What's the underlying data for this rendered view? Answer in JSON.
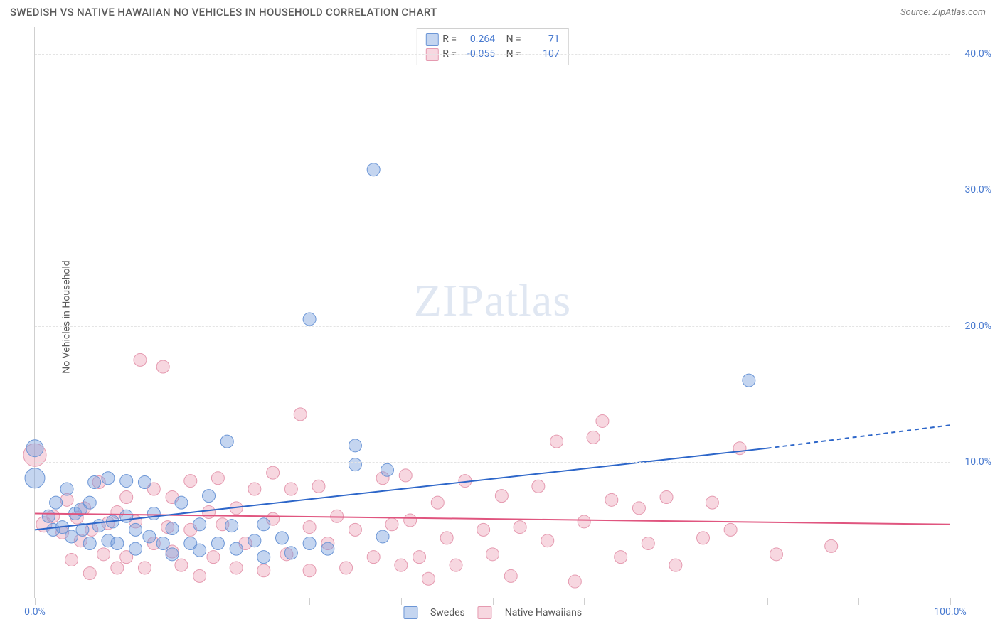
{
  "title": "SWEDISH VS NATIVE HAWAIIAN NO VEHICLES IN HOUSEHOLD CORRELATION CHART",
  "source_label": "Source: ZipAtlas.com",
  "y_axis_title": "No Vehicles in Household",
  "watermark": {
    "prefix": "ZIP",
    "suffix": "atlas"
  },
  "chart": {
    "type": "scatter",
    "xlim": [
      0,
      100
    ],
    "ylim": [
      0,
      42
    ],
    "x_ticks": [
      0,
      10,
      20,
      30,
      40,
      50,
      60,
      70,
      80,
      90,
      100
    ],
    "x_tick_labels_shown": [
      {
        "v": 0,
        "t": "0.0%"
      },
      {
        "v": 100,
        "t": "100.0%"
      }
    ],
    "y_ticks": [
      10,
      20,
      30,
      40
    ],
    "y_tick_labels": [
      "10.0%",
      "20.0%",
      "30.0%",
      "40.0%"
    ],
    "grid_color": "#e4e4e4",
    "axis_color": "#cfcfcf",
    "background": "#ffffff",
    "title_fontsize": 15,
    "label_fontsize": 14,
    "tick_color": "#4a7bd0"
  },
  "series": {
    "swedes": {
      "label": "Swedes",
      "color_fill": "rgba(124,162,222,0.45)",
      "color_stroke": "#6c96d6",
      "marker_radius": 9,
      "R": "0.264",
      "N": "71",
      "trend": {
        "x0": 0,
        "y0": 5.0,
        "x1": 80,
        "y1": 11.0,
        "color": "#2d66c9",
        "width": 2,
        "dash_extend_to": 100,
        "y_extend": 12.7
      },
      "points": [
        {
          "x": 0,
          "y": 11,
          "r": 12
        },
        {
          "x": 0,
          "y": 8.8,
          "r": 14
        },
        {
          "x": 1.5,
          "y": 6,
          "r": 9
        },
        {
          "x": 2,
          "y": 5,
          "r": 9
        },
        {
          "x": 2.3,
          "y": 7,
          "r": 9
        },
        {
          "x": 3,
          "y": 5.2,
          "r": 9
        },
        {
          "x": 3.5,
          "y": 8,
          "r": 9
        },
        {
          "x": 4,
          "y": 4.5,
          "r": 9
        },
        {
          "x": 4.4,
          "y": 6.2,
          "r": 9
        },
        {
          "x": 5,
          "y": 6.5,
          "r": 9
        },
        {
          "x": 5.2,
          "y": 5,
          "r": 9
        },
        {
          "x": 6,
          "y": 4,
          "r": 9
        },
        {
          "x": 6,
          "y": 7,
          "r": 9
        },
        {
          "x": 6.5,
          "y": 8.5,
          "r": 9
        },
        {
          "x": 7,
          "y": 5.3,
          "r": 9
        },
        {
          "x": 8,
          "y": 8.8,
          "r": 9
        },
        {
          "x": 8,
          "y": 4.2,
          "r": 9
        },
        {
          "x": 8.5,
          "y": 5.6,
          "r": 9
        },
        {
          "x": 9,
          "y": 4,
          "r": 9
        },
        {
          "x": 10,
          "y": 6,
          "r": 9
        },
        {
          "x": 10,
          "y": 8.6,
          "r": 9
        },
        {
          "x": 11,
          "y": 5,
          "r": 9
        },
        {
          "x": 11,
          "y": 3.6,
          "r": 9
        },
        {
          "x": 12,
          "y": 8.5,
          "r": 9
        },
        {
          "x": 12.5,
          "y": 4.5,
          "r": 9
        },
        {
          "x": 13,
          "y": 6.2,
          "r": 9
        },
        {
          "x": 14,
          "y": 4,
          "r": 9
        },
        {
          "x": 15,
          "y": 5.1,
          "r": 9
        },
        {
          "x": 15,
          "y": 3.2,
          "r": 9
        },
        {
          "x": 16,
          "y": 7,
          "r": 9
        },
        {
          "x": 17,
          "y": 4,
          "r": 9
        },
        {
          "x": 18,
          "y": 3.5,
          "r": 9
        },
        {
          "x": 18,
          "y": 5.4,
          "r": 9
        },
        {
          "x": 19,
          "y": 7.5,
          "r": 9
        },
        {
          "x": 20,
          "y": 4,
          "r": 9
        },
        {
          "x": 21,
          "y": 11.5,
          "r": 9
        },
        {
          "x": 21.5,
          "y": 5.3,
          "r": 9
        },
        {
          "x": 22,
          "y": 3.6,
          "r": 9
        },
        {
          "x": 24,
          "y": 4.2,
          "r": 9
        },
        {
          "x": 25,
          "y": 3,
          "r": 9
        },
        {
          "x": 25,
          "y": 5.4,
          "r": 9
        },
        {
          "x": 27,
          "y": 4.4,
          "r": 9
        },
        {
          "x": 28,
          "y": 3.3,
          "r": 9
        },
        {
          "x": 30,
          "y": 20.5,
          "r": 9
        },
        {
          "x": 30,
          "y": 4,
          "r": 9
        },
        {
          "x": 32,
          "y": 3.6,
          "r": 9
        },
        {
          "x": 35,
          "y": 11.2,
          "r": 9
        },
        {
          "x": 35,
          "y": 9.8,
          "r": 9
        },
        {
          "x": 37,
          "y": 31.5,
          "r": 9
        },
        {
          "x": 38,
          "y": 4.5,
          "r": 9
        },
        {
          "x": 38.5,
          "y": 9.4,
          "r": 9
        },
        {
          "x": 78,
          "y": 16,
          "r": 9
        }
      ]
    },
    "hawaiians": {
      "label": "Native Hawaiians",
      "color_fill": "rgba(236,160,180,0.42)",
      "color_stroke": "#e59ab0",
      "marker_radius": 9,
      "R": "-0.055",
      "N": "107",
      "trend": {
        "x0": 0,
        "y0": 6.2,
        "x1": 100,
        "y1": 5.4,
        "color": "#e0557f",
        "width": 2
      },
      "points": [
        {
          "x": 0,
          "y": 10.5,
          "r": 16
        },
        {
          "x": 1,
          "y": 5.4,
          "r": 11
        },
        {
          "x": 2,
          "y": 6,
          "r": 9
        },
        {
          "x": 3,
          "y": 4.8,
          "r": 9
        },
        {
          "x": 3.5,
          "y": 7.2,
          "r": 9
        },
        {
          "x": 4,
          "y": 2.8,
          "r": 9
        },
        {
          "x": 4.6,
          "y": 5.9,
          "r": 9
        },
        {
          "x": 5,
          "y": 4.2,
          "r": 9
        },
        {
          "x": 5.4,
          "y": 6.6,
          "r": 9
        },
        {
          "x": 6,
          "y": 1.8,
          "r": 9
        },
        {
          "x": 6.2,
          "y": 5,
          "r": 9
        },
        {
          "x": 7,
          "y": 8.5,
          "r": 9
        },
        {
          "x": 7.5,
          "y": 3.2,
          "r": 9
        },
        {
          "x": 8,
          "y": 5.5,
          "r": 9
        },
        {
          "x": 9,
          "y": 2.2,
          "r": 9
        },
        {
          "x": 9,
          "y": 6.3,
          "r": 9
        },
        {
          "x": 10,
          "y": 7.4,
          "r": 9
        },
        {
          "x": 10,
          "y": 3,
          "r": 9
        },
        {
          "x": 11,
          "y": 5.6,
          "r": 9
        },
        {
          "x": 11.5,
          "y": 17.5,
          "r": 9
        },
        {
          "x": 12,
          "y": 2.2,
          "r": 9
        },
        {
          "x": 13,
          "y": 4,
          "r": 9
        },
        {
          "x": 13,
          "y": 8,
          "r": 9
        },
        {
          "x": 14,
          "y": 17,
          "r": 9
        },
        {
          "x": 14.5,
          "y": 5.2,
          "r": 9
        },
        {
          "x": 15,
          "y": 3.4,
          "r": 9
        },
        {
          "x": 15,
          "y": 7.4,
          "r": 9
        },
        {
          "x": 16,
          "y": 2.4,
          "r": 9
        },
        {
          "x": 17,
          "y": 8.6,
          "r": 9
        },
        {
          "x": 17,
          "y": 5,
          "r": 9
        },
        {
          "x": 18,
          "y": 1.6,
          "r": 9
        },
        {
          "x": 19,
          "y": 6.3,
          "r": 9
        },
        {
          "x": 19.5,
          "y": 3,
          "r": 9
        },
        {
          "x": 20,
          "y": 8.8,
          "r": 9
        },
        {
          "x": 20.5,
          "y": 5.4,
          "r": 9
        },
        {
          "x": 22,
          "y": 2.2,
          "r": 9
        },
        {
          "x": 22,
          "y": 6.6,
          "r": 9
        },
        {
          "x": 23,
          "y": 4,
          "r": 9
        },
        {
          "x": 24,
          "y": 8,
          "r": 9
        },
        {
          "x": 25,
          "y": 2,
          "r": 9
        },
        {
          "x": 26,
          "y": 5.8,
          "r": 9
        },
        {
          "x": 26,
          "y": 9.2,
          "r": 9
        },
        {
          "x": 27.5,
          "y": 3.2,
          "r": 9
        },
        {
          "x": 28,
          "y": 8,
          "r": 9
        },
        {
          "x": 29,
          "y": 13.5,
          "r": 9
        },
        {
          "x": 30,
          "y": 5.2,
          "r": 9
        },
        {
          "x": 30,
          "y": 2,
          "r": 9
        },
        {
          "x": 31,
          "y": 8.2,
          "r": 9
        },
        {
          "x": 32,
          "y": 4,
          "r": 9
        },
        {
          "x": 33,
          "y": 6,
          "r": 9
        },
        {
          "x": 34,
          "y": 2.2,
          "r": 9
        },
        {
          "x": 35,
          "y": 5,
          "r": 9
        },
        {
          "x": 37,
          "y": 3,
          "r": 9
        },
        {
          "x": 38,
          "y": 8.8,
          "r": 9
        },
        {
          "x": 39,
          "y": 5.4,
          "r": 9
        },
        {
          "x": 40,
          "y": 2.4,
          "r": 9
        },
        {
          "x": 40.5,
          "y": 9,
          "r": 9
        },
        {
          "x": 41,
          "y": 5.7,
          "r": 9
        },
        {
          "x": 42,
          "y": 3,
          "r": 9
        },
        {
          "x": 43,
          "y": 1.4,
          "r": 9
        },
        {
          "x": 44,
          "y": 7,
          "r": 9
        },
        {
          "x": 45,
          "y": 4.4,
          "r": 9
        },
        {
          "x": 46,
          "y": 2.4,
          "r": 9
        },
        {
          "x": 47,
          "y": 8.6,
          "r": 9
        },
        {
          "x": 49,
          "y": 5,
          "r": 9
        },
        {
          "x": 50,
          "y": 3.2,
          "r": 9
        },
        {
          "x": 51,
          "y": 7.5,
          "r": 9
        },
        {
          "x": 52,
          "y": 1.6,
          "r": 9
        },
        {
          "x": 53,
          "y": 5.2,
          "r": 9
        },
        {
          "x": 55,
          "y": 8.2,
          "r": 9
        },
        {
          "x": 56,
          "y": 4.2,
          "r": 9
        },
        {
          "x": 57,
          "y": 11.5,
          "r": 9
        },
        {
          "x": 59,
          "y": 1.2,
          "r": 9
        },
        {
          "x": 60,
          "y": 5.6,
          "r": 9
        },
        {
          "x": 61,
          "y": 11.8,
          "r": 9
        },
        {
          "x": 62,
          "y": 13,
          "r": 9
        },
        {
          "x": 63,
          "y": 7.2,
          "r": 9
        },
        {
          "x": 64,
          "y": 3,
          "r": 9
        },
        {
          "x": 66,
          "y": 6.6,
          "r": 9
        },
        {
          "x": 67,
          "y": 4,
          "r": 9
        },
        {
          "x": 69,
          "y": 7.4,
          "r": 9
        },
        {
          "x": 70,
          "y": 2.4,
          "r": 9
        },
        {
          "x": 73,
          "y": 4.4,
          "r": 9
        },
        {
          "x": 74,
          "y": 7,
          "r": 9
        },
        {
          "x": 76,
          "y": 5,
          "r": 9
        },
        {
          "x": 77,
          "y": 11,
          "r": 9
        },
        {
          "x": 81,
          "y": 3.2,
          "r": 9
        },
        {
          "x": 87,
          "y": 3.8,
          "r": 9
        }
      ]
    }
  },
  "stats_labels": {
    "R": "R =",
    "N": "N ="
  },
  "legend_labels": {
    "swedes": "Swedes",
    "hawaiians": "Native Hawaiians"
  }
}
